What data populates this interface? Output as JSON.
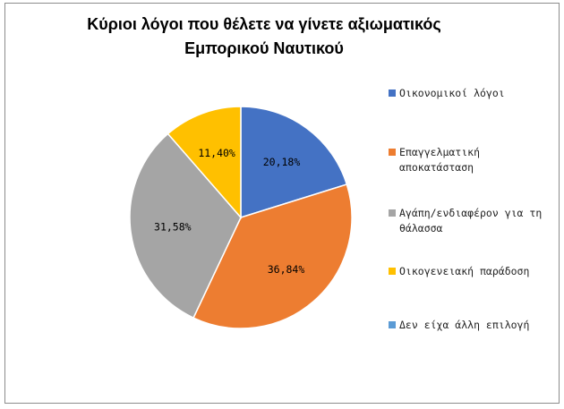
{
  "chart_data": {
    "type": "pie",
    "title": "Κύριοι λόγοι που θέλετε να γίνετε αξιωματικός Εμπορικού Ναυτικού",
    "categories": [
      "Οικονομικοί λόγοι",
      "Επαγγελματική αποκατάσταση",
      "Αγάπη/ενδιαφέρον για τη θάλασσα",
      "Οικογενειακή παράδοση",
      "Δεν είχα άλλη επιλογή"
    ],
    "values": [
      20.18,
      36.84,
      31.58,
      11.4,
      0
    ],
    "value_labels": [
      "20,18%",
      "36,84%",
      "31,58%",
      "11,40%",
      ""
    ],
    "colors": [
      "#4472c4",
      "#ed7d31",
      "#a5a5a5",
      "#ffc000",
      "#5b9bd5"
    ],
    "legend_position": "right"
  }
}
